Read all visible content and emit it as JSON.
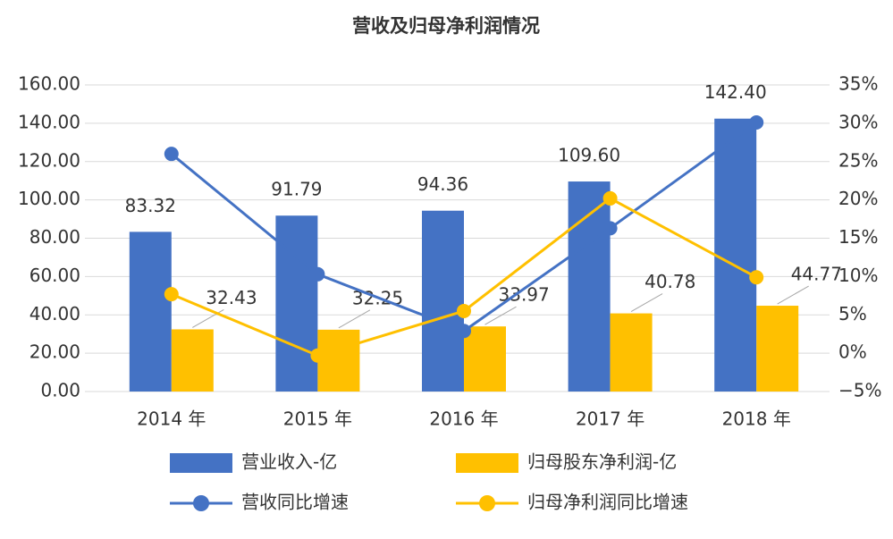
{
  "chart_data": {
    "type": "bar-line",
    "title": "营收及归母净利润情况",
    "categories": [
      "2014 年",
      "2015 年",
      "2016 年",
      "2017 年",
      "2018 年"
    ],
    "series": [
      {
        "name": "营业收入-亿",
        "type": "bar",
        "color": "#4472c4",
        "values": [
          83.32,
          91.79,
          94.36,
          109.6,
          142.4
        ],
        "value_labels": [
          "83.32",
          "91.79",
          "94.36",
          "109.60",
          "142.40"
        ]
      },
      {
        "name": "归母股东净利润-亿",
        "type": "bar",
        "color": "#ffc000",
        "values": [
          32.43,
          32.25,
          33.97,
          40.78,
          44.77
        ]
      },
      {
        "name": "营收同比增速",
        "type": "line",
        "axis": "y2",
        "color": "#4472c4",
        "values": [
          26.0,
          10.3,
          2.9,
          16.3,
          30.1
        ]
      },
      {
        "name": "归母净利润同比增速",
        "type": "line",
        "axis": "y2",
        "color": "#ffc000",
        "values": [
          7.7,
          -0.3,
          5.5,
          20.2,
          9.9
        ]
      }
    ],
    "ylim": [
      0,
      160
    ],
    "yticks": [
      {
        "value": 0,
        "label": "0.00"
      },
      {
        "value": 20,
        "label": "20.00"
      },
      {
        "value": 40,
        "label": "40.00"
      },
      {
        "value": 60,
        "label": "60.00"
      },
      {
        "value": 80,
        "label": "80.00"
      },
      {
        "value": 100,
        "label": "100.00"
      },
      {
        "value": 120,
        "label": "120.00"
      },
      {
        "value": 140,
        "label": "140.00"
      },
      {
        "value": 160,
        "label": "160.00"
      }
    ],
    "y2lim": [
      -5,
      35
    ],
    "y2ticks": [
      {
        "value": -5,
        "label": "−5%"
      },
      {
        "value": 0,
        "label": "0%"
      },
      {
        "value": 5,
        "label": "5%"
      },
      {
        "value": 10,
        "label": "10%"
      },
      {
        "value": 15,
        "label": "15%"
      },
      {
        "value": 20,
        "label": "20%"
      },
      {
        "value": 25,
        "label": "25%"
      },
      {
        "value": 30,
        "label": "30%"
      },
      {
        "value": 35,
        "label": "35%"
      }
    ],
    "grid": true
  }
}
